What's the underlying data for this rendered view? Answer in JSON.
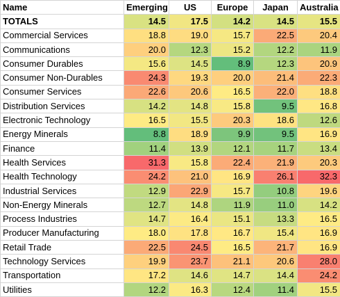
{
  "headers": {
    "name": "Name",
    "columns": [
      "Emerging",
      "US",
      "Europe",
      "Japan",
      "Australia"
    ]
  },
  "rows": [
    {
      "name": "TOTALS",
      "values": [
        "14.5",
        "17.5",
        "14.2",
        "14.5",
        "15.5"
      ],
      "colors": [
        "#d9e282",
        "#f1e683",
        "#d3e081",
        "#d9e282",
        "#e6e582"
      ]
    },
    {
      "name": "Commercial Services",
      "values": [
        "18.8",
        "19.0",
        "15.7",
        "22.5",
        "20.4"
      ],
      "colors": [
        "#fedf81",
        "#fedc81",
        "#f6e883",
        "#fbaa77",
        "#fdc97d"
      ]
    },
    {
      "name": "Communications",
      "values": [
        "20.0",
        "12.3",
        "15.2",
        "12.2",
        "11.9"
      ],
      "colors": [
        "#fecf7e",
        "#b5d77f",
        "#ede683",
        "#b2d67f",
        "#aad47f"
      ]
    },
    {
      "name": "Consumer Durables",
      "values": [
        "15.6",
        "14.5",
        "8.9",
        "12.3",
        "20.9"
      ],
      "colors": [
        "#f4e883",
        "#dde383",
        "#63be7b",
        "#b5d77f",
        "#fdc47c"
      ]
    },
    {
      "name": "Consumer Non-Durables",
      "values": [
        "24.3",
        "19.3",
        "20.0",
        "21.4",
        "22.3"
      ],
      "colors": [
        "#f98a71",
        "#fed880",
        "#fecf7e",
        "#fcbd7a",
        "#fbab77"
      ]
    },
    {
      "name": "Consumer Services",
      "values": [
        "22.6",
        "20.6",
        "16.5",
        "22.0",
        "18.8"
      ],
      "colors": [
        "#fba977",
        "#fdc87c",
        "#feeb84",
        "#fbb079",
        "#fedf81"
      ]
    },
    {
      "name": "Distribution Services",
      "values": [
        "14.2",
        "14.8",
        "15.8",
        "9.5",
        "16.8"
      ],
      "colors": [
        "#d7e182",
        "#e3e483",
        "#f8e984",
        "#72c27c",
        "#ffe784"
      ]
    },
    {
      "name": "Electronic Technology",
      "values": [
        "16.5",
        "15.5",
        "20.3",
        "18.6",
        "12.6"
      ],
      "colors": [
        "#feeb84",
        "#f2e783",
        "#fdca7d",
        "#fee281",
        "#bed97f"
      ]
    },
    {
      "name": "Energy Minerals",
      "values": [
        "8.8",
        "18.9",
        "9.9",
        "9.5",
        "16.9"
      ],
      "colors": [
        "#63be7b",
        "#fedd81",
        "#7dc57c",
        "#72c27c",
        "#ffe583"
      ]
    },
    {
      "name": "Finance",
      "values": [
        "11.4",
        "13.9",
        "12.1",
        "11.7",
        "13.4"
      ],
      "colors": [
        "#a1d17e",
        "#d1df81",
        "#b2d67f",
        "#a7d37e",
        "#c9dd81"
      ]
    },
    {
      "name": "Health Services",
      "values": [
        "31.3",
        "15.8",
        "22.4",
        "21.9",
        "20.3"
      ],
      "colors": [
        "#f8696b",
        "#f8e984",
        "#fbab77",
        "#fbb179",
        "#fdca7d"
      ]
    },
    {
      "name": "Health Technology",
      "values": [
        "24.2",
        "21.0",
        "16.9",
        "26.1",
        "32.3"
      ],
      "colors": [
        "#fa8d72",
        "#fdc27c",
        "#ffe583",
        "#f98070",
        "#f8696b"
      ]
    },
    {
      "name": "Industrial Services",
      "values": [
        "12.9",
        "22.9",
        "15.7",
        "10.8",
        "19.6"
      ],
      "colors": [
        "#c1da80",
        "#fba676",
        "#f6e883",
        "#94cd7e",
        "#fed47f"
      ]
    },
    {
      "name": "Non-Energy Minerals",
      "values": [
        "12.7",
        "14.8",
        "11.9",
        "11.0",
        "14.2"
      ],
      "colors": [
        "#bdd980",
        "#e3e483",
        "#aed57f",
        "#98ce7e",
        "#d7e182"
      ]
    },
    {
      "name": "Process Industries",
      "values": [
        "14.7",
        "16.4",
        "15.1",
        "13.3",
        "16.5"
      ],
      "colors": [
        "#e0e483",
        "#fcea84",
        "#eae683",
        "#c7dc81",
        "#feeb84"
      ]
    },
    {
      "name": "Producer Manufacturing",
      "values": [
        "18.0",
        "17.8",
        "16.7",
        "15.4",
        "16.9"
      ],
      "colors": [
        "#feeb84",
        "#fee282",
        "#ffe884",
        "#f0e783",
        "#ffe583"
      ]
    },
    {
      "name": "Retail Trade",
      "values": [
        "22.5",
        "24.5",
        "16.5",
        "21.7",
        "16.9"
      ],
      "colors": [
        "#fbaa77",
        "#f98871",
        "#feeb84",
        "#fcb47a",
        "#ffe583"
      ]
    },
    {
      "name": "Technology Services",
      "values": [
        "19.9",
        "23.7",
        "21.1",
        "20.6",
        "28.0"
      ],
      "colors": [
        "#fed07e",
        "#fa9473",
        "#fdc17b",
        "#fdc87c",
        "#f98070"
      ]
    },
    {
      "name": "Transportation",
      "values": [
        "17.2",
        "14.6",
        "14.7",
        "14.4",
        "24.2"
      ],
      "colors": [
        "#ffe683",
        "#dfe383",
        "#e0e483",
        "#dae283",
        "#fa8d72"
      ]
    },
    {
      "name": "Utilities",
      "values": [
        "12.2",
        "16.3",
        "12.4",
        "11.4",
        "15.5"
      ],
      "colors": [
        "#b2d67f",
        "#fbea84",
        "#b8d87f",
        "#a1d17e",
        "#f2e783"
      ]
    }
  ]
}
